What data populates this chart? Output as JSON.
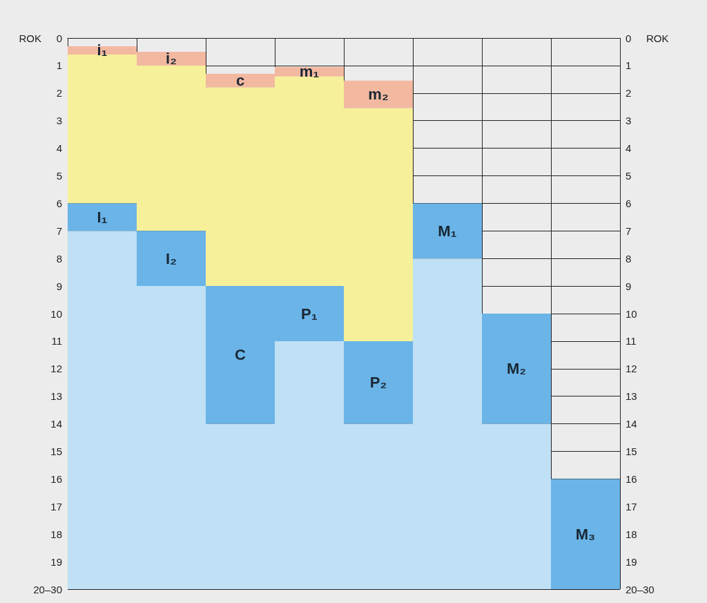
{
  "chart_data": {
    "type": "bar",
    "ylabel": "ROK",
    "y2label": "ROK",
    "categories": [
      null,
      null,
      null,
      null,
      null,
      null,
      null,
      null
    ],
    "series": [
      {
        "color": "#f2b9a0",
        "base": [
          0.3,
          0.5,
          1.3,
          1.05,
          1.55,
          null,
          null,
          null
        ],
        "values": [
          0.3,
          0.5,
          0.5,
          0.35,
          1,
          null,
          null,
          null
        ],
        "value_labels": [
          "i₁",
          "i₂",
          "c",
          "m₁",
          "m₂",
          null,
          null,
          null
        ]
      },
      {
        "color": "#f7f09a",
        "base": [
          0.6,
          1,
          1.8,
          1.4,
          2.55,
          null,
          null,
          null
        ],
        "values": [
          5.4,
          6,
          7.2,
          7.6,
          8.45,
          null,
          null,
          null
        ]
      },
      {
        "color": "#6ab4e8",
        "base": [
          6,
          7,
          9,
          9,
          11,
          6,
          10,
          16
        ],
        "values": [
          1,
          2,
          5,
          2,
          3,
          2,
          4,
          4
        ],
        "value_labels": [
          "I₁",
          "I₂",
          "C",
          "P₁",
          "P₂",
          "M₁",
          "M₂",
          "M₃"
        ]
      },
      {
        "color": "#bfe0f5",
        "base": [
          7,
          9,
          14,
          11,
          14,
          8,
          14,
          null
        ],
        "values": [
          13,
          11,
          6,
          9,
          6,
          12,
          6,
          null
        ]
      }
    ],
    "ylim": [
      20,
      0
    ],
    "y2lim": [
      20,
      0
    ],
    "yticks": [
      0,
      1,
      2,
      3,
      4,
      5,
      6,
      7,
      8,
      9,
      10,
      11,
      12,
      13,
      14,
      15,
      16,
      17,
      18,
      19,
      {
        "value": 20,
        "label": "20–30"
      }
    ],
    "y2ticks": [
      0,
      1,
      2,
      3,
      4,
      5,
      6,
      7,
      8,
      9,
      10,
      11,
      12,
      13,
      14,
      15,
      16,
      17,
      18,
      19,
      {
        "value": 20,
        "label": "20–30"
      }
    ],
    "grid": true
  }
}
